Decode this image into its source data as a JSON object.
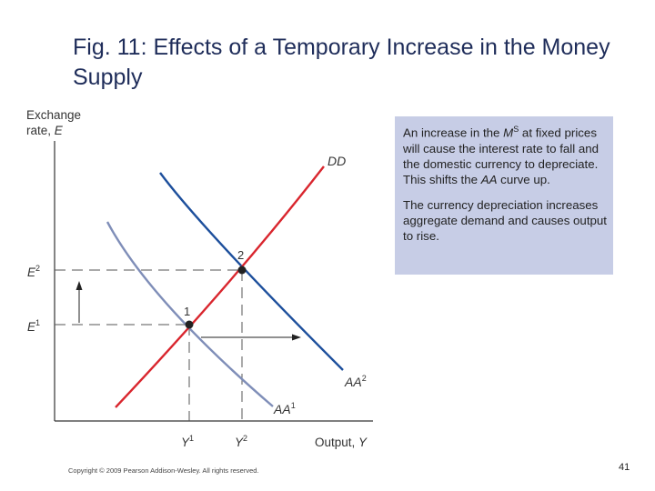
{
  "slide": {
    "title": "Fig. 11: Effects of a Temporary Increase in the Money Supply",
    "footer": "Copyright © 2009 Pearson Addison-Wesley. All rights reserved.",
    "page_number": "41"
  },
  "callout": {
    "paragraph1": {
      "pre": "An increase in the ",
      "ms_base": "M",
      "ms_sup": "S",
      "post_ms": " at fixed prices will cause the interest rate to fall and the domestic currency to depreciate. This shifts the ",
      "aa_italic": "AA",
      "end": " curve up."
    },
    "paragraph2": "The currency depreciation increases aggregate demand and causes output to rise."
  },
  "diagram": {
    "y_axis_label_line1": "Exchange",
    "y_axis_label_line2_text": "rate, ",
    "y_axis_label_line2_var": "E",
    "x_axis_label_text": "Output, ",
    "x_axis_label_var": "Y",
    "curves": {
      "dd": "DD",
      "aa1_base": "AA",
      "aa1_sup": "1",
      "aa2_base": "AA",
      "aa2_sup": "2"
    },
    "points": {
      "p1": "1",
      "p2": "2"
    },
    "y_ticks": {
      "e1_base": "E",
      "e1_sup": "1",
      "e2_base": "E",
      "e2_sup": "2"
    },
    "x_ticks": {
      "y1_base": "Y",
      "y1_sup": "1",
      "y2_base": "Y",
      "y2_sup": "2"
    },
    "colors": {
      "dd_curve": "#d9262e",
      "aa1_curve": "#7f8eb8",
      "aa2_curve": "#1d4f9c",
      "callout_bg": "#c7cde6",
      "title": "#1f2d5a"
    }
  }
}
